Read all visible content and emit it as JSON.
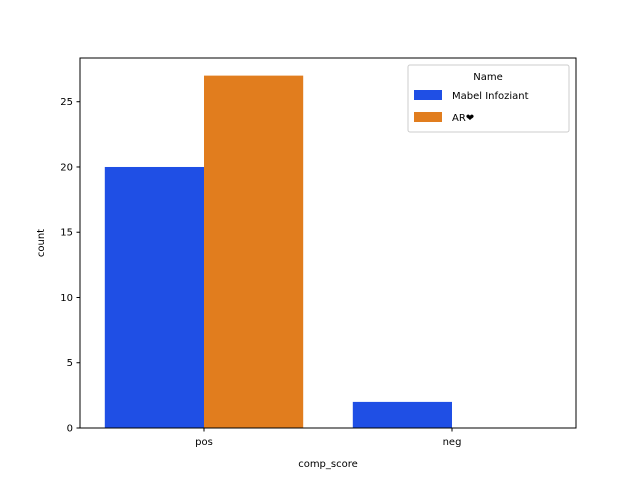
{
  "chart_data": {
    "type": "bar",
    "title": "",
    "xlabel": "comp_score",
    "ylabel": "count",
    "categories": [
      "pos",
      "neg"
    ],
    "series": [
      {
        "name": "Mabel Infoziant",
        "color": "#1f4fe5",
        "values": [
          20,
          2
        ]
      },
      {
        "name": "AR❤",
        "color": "#e17d1e",
        "values": [
          27,
          0
        ]
      }
    ],
    "ylim": [
      0,
      28.35
    ],
    "yticks": [
      0,
      5,
      10,
      15,
      20,
      25
    ],
    "grid": false,
    "legend": {
      "title": "Name",
      "placement": "top-right"
    }
  }
}
